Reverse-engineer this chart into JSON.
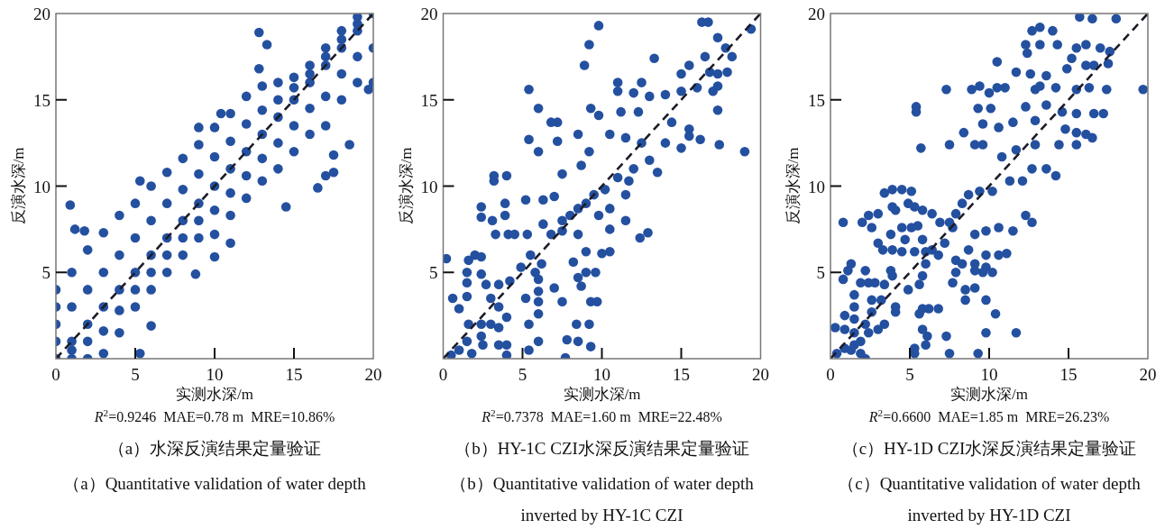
{
  "chart_data": [
    {
      "type": "scatter",
      "xlabel": "实测水深/m",
      "ylabel": "反演水深/m",
      "annotations": [
        "R$^{2}$=0.9246  MAE=0.78 m  MRE=10.86%",
        "（a）水深反演结果定量验证",
        "（a）Quantitative validation of water depth"
      ],
      "xlim": [
        0,
        20
      ],
      "ylim": [
        0,
        20
      ],
      "xticks": [
        0,
        5,
        10,
        15,
        20
      ],
      "yticks": [
        5,
        10,
        15,
        20
      ],
      "marker": "circle",
      "series": [
        {
          "color": "#2450a0",
          "x": [
            0,
            0,
            0,
            0,
            0,
            1,
            1,
            1,
            1,
            1,
            2,
            2,
            2,
            2,
            2,
            3,
            3,
            3,
            3,
            3,
            4,
            4,
            4,
            4,
            4,
            5,
            5,
            5,
            5,
            5,
            6,
            6,
            6,
            6,
            6,
            7,
            7,
            7,
            7,
            7,
            8,
            8,
            8,
            8,
            8,
            9,
            9,
            9,
            9,
            9,
            10,
            10,
            10,
            10,
            10,
            11,
            11,
            11,
            11,
            11,
            12,
            12,
            12,
            12,
            12,
            13,
            13,
            13,
            13,
            13,
            14,
            14,
            14,
            14,
            14,
            15,
            15,
            15,
            15,
            15,
            16,
            16,
            16,
            16,
            16,
            17,
            17,
            17,
            17,
            17,
            18,
            18,
            18,
            18,
            18,
            19,
            19,
            19,
            19,
            19,
            20,
            20,
            20,
            0.9,
            1.2,
            1.8,
            5.3,
            9,
            12.8,
            13.3,
            12.8,
            10.4,
            10,
            11,
            8.8,
            14.5,
            16.5,
            17,
            17.5,
            17.5,
            18.5,
            19.7,
            5.3,
            6
          ],
          "values": [
            0,
            1,
            2,
            3,
            4,
            0,
            0.5,
            1,
            3,
            5,
            0,
            1,
            2,
            4,
            6.3,
            0.3,
            1.6,
            3,
            5,
            7.3,
            1.5,
            2.8,
            4,
            6,
            8.3,
            3,
            4,
            5,
            7,
            9,
            4,
            5,
            6,
            8,
            10,
            5,
            6,
            7,
            9,
            10.8,
            6,
            7,
            8,
            9.8,
            11.6,
            7,
            8,
            9,
            10.7,
            12.4,
            7.2,
            8.6,
            10,
            11.7,
            13.4,
            8.3,
            9.6,
            11,
            12.6,
            14.2,
            9.3,
            10.6,
            12,
            13.6,
            15.2,
            10.3,
            11.6,
            13,
            14.4,
            15.8,
            11,
            12.5,
            14,
            15,
            16,
            12,
            13.5,
            15,
            15.7,
            16.3,
            13,
            14.5,
            16,
            16.5,
            17,
            13.5,
            15.2,
            17,
            17.5,
            18,
            15,
            16.5,
            18,
            18.5,
            19,
            16,
            17.5,
            19,
            19.4,
            19.8,
            16,
            18,
            20,
            8.9,
            7.5,
            7.4,
            10.3,
            13.4,
            18.9,
            18.2,
            16.8,
            14.2,
            5.9,
            6.7,
            4.9,
            8.8,
            9.9,
            10.6,
            10.8,
            11.8,
            12.4,
            15.6,
            0.3,
            1.9
          ]
        },
        {
          "type": "line",
          "color": "#1c1c28",
          "line_style": "dashed",
          "marker": "none",
          "x": [
            0,
            20
          ],
          "values": [
            0,
            20
          ]
        }
      ]
    },
    {
      "type": "scatter",
      "xlabel": "实测水深/m",
      "ylabel": "反演水深/m",
      "annotations": [
        "R$^{2}$=0.7378  MAE=1.60 m  MRE=22.48%",
        "（b）HY-1C CZI水深反演结果定量验证",
        "（b）Quantitative validation of water depth inverted by HY-1C CZI"
      ],
      "xlim": [
        0,
        20
      ],
      "ylim": [
        0,
        20
      ],
      "xticks": [
        0,
        5,
        10,
        15,
        20
      ],
      "yticks": [
        5,
        10,
        15,
        20
      ],
      "marker": "circle",
      "series": [
        {
          "color": "#2450a0",
          "x": [
            19.4,
            9.8,
            16.3,
            16.7,
            9.2,
            8.9,
            13.3,
            17.3,
            17.8,
            18.2,
            16.5,
            15.5,
            15,
            16.8,
            17.3,
            17.9,
            5.4,
            6,
            5.4,
            6,
            7.2,
            6.8,
            7.2,
            11,
            12.5,
            11,
            12,
            13,
            9.3,
            9.8,
            11.2,
            12.3,
            14,
            15,
            16,
            17,
            17.3,
            17.3,
            17.4,
            19,
            14.4,
            15.5,
            15.5,
            16.2,
            14,
            15,
            13,
            12,
            11,
            10.2,
            9.5,
            9,
            8.5,
            8,
            7.5,
            9.8,
            10.5,
            11.5,
            11.7,
            13.5,
            12.5,
            11.5,
            10.5,
            8.5,
            9.2,
            8.7,
            7.5,
            7,
            6.3,
            5.2,
            3.2,
            4,
            3.2,
            2.4,
            2.4,
            3.1,
            3.9,
            3.9,
            3.3,
            4.1,
            4.5,
            5.3,
            6.3,
            6.8,
            7.5,
            8.5,
            10.5,
            11.5,
            12.4,
            12.9,
            9,
            10,
            10.5,
            8.2,
            9,
            9.6,
            8.5,
            8.7,
            7.5,
            9.3,
            9.7,
            5.5,
            6.2,
            5.8,
            6,
            4.9,
            4.2,
            3.5,
            2.7,
            1.5,
            1.5,
            1.6,
            2,
            2.4,
            2.4,
            0.2,
            0.6,
            1,
            1.5,
            3,
            3.5,
            4,
            2.4,
            1.6,
            3,
            3.5,
            2.4,
            3.5,
            2.5,
            1.5,
            1,
            0.5,
            1.8,
            4,
            4,
            5.4,
            5.4,
            6,
            6,
            6,
            6,
            7,
            5.2,
            8.4,
            9.2,
            7.8,
            8.5,
            9.3,
            7.7
          ],
          "values": [
            19.1,
            19.3,
            19.5,
            19.5,
            18.2,
            17,
            17.4,
            18.6,
            18,
            17.5,
            17.5,
            17,
            16.5,
            16.6,
            16.5,
            16.6,
            15.6,
            14.5,
            12.7,
            12,
            13.7,
            13.7,
            12.6,
            16,
            16,
            15.5,
            15.4,
            15.2,
            14.5,
            14.1,
            14.3,
            14.3,
            15.3,
            15.5,
            15.7,
            15.5,
            15.8,
            14.4,
            12.4,
            12,
            13.7,
            13.3,
            12.9,
            12.7,
            12.5,
            12.2,
            11.5,
            11,
            10.5,
            9.8,
            9.5,
            9,
            8.7,
            8.3,
            8,
            8.3,
            8.7,
            9.5,
            10.3,
            10.8,
            12.5,
            12.8,
            13,
            13,
            12,
            11.2,
            10.7,
            9.4,
            9.2,
            9.2,
            10.6,
            10.6,
            10.3,
            8.8,
            8.2,
            8,
            9,
            8.3,
            7.2,
            7.2,
            7.2,
            7.2,
            7.8,
            7.2,
            7.4,
            7.2,
            7.5,
            8,
            7,
            7.3,
            6.2,
            6.1,
            6.2,
            5.6,
            5,
            5,
            4.7,
            4.2,
            3.3,
            3.3,
            3.3,
            6,
            5.5,
            5,
            4.6,
            5.3,
            4.5,
            4.3,
            4.3,
            4.4,
            5,
            5.7,
            6,
            5.9,
            4.9,
            5.8,
            3.5,
            2.9,
            3.6,
            3.5,
            3,
            2.4,
            2,
            2,
            2,
            1.8,
            1.3,
            0.8,
            0.8,
            1,
            0.5,
            0.2,
            0.3,
            0.2,
            0.8,
            0.5,
            2,
            2.6,
            1,
            3.9,
            3.3,
            4.1,
            3.5,
            2,
            2,
            1.1,
            1,
            0.7,
            0.05
          ]
        },
        {
          "type": "line",
          "color": "#1c1c28",
          "line_style": "dashed",
          "marker": "none",
          "x": [
            0,
            20
          ],
          "values": [
            0,
            20
          ]
        }
      ]
    },
    {
      "type": "scatter",
      "xlabel": "实测水深/m",
      "ylabel": "反演水深/m",
      "annotations": [
        "R$^{2}$=0.6600  MAE=1.85 m  MRE=26.23%",
        "（c）HY-1D CZI水深反演结果定量验证",
        "（c）Quantitative validation of water depth inverted by HY-1D CZI"
      ],
      "xlim": [
        0,
        20
      ],
      "ylim": [
        0,
        20
      ],
      "xticks": [
        0,
        5,
        10,
        15,
        20
      ],
      "yticks": [
        5,
        10,
        15,
        20
      ],
      "marker": "circle",
      "series": [
        {
          "color": "#2450a0",
          "x": [
            15.7,
            16.5,
            18,
            13.2,
            12.7,
            14,
            14.3,
            12.3,
            13.2,
            12.4,
            10.5,
            11.7,
            12.6,
            13.6,
            15.5,
            16.1,
            17,
            17.6,
            17.5,
            15.2,
            14.9,
            16.1,
            16.6,
            7.3,
            8.9,
            9.4,
            10,
            10.5,
            11,
            12.9,
            13.2,
            14.2,
            15.5,
            16.3,
            17.4,
            19.7,
            5.4,
            5.4,
            5.7,
            7.5,
            8.4,
            9.1,
            9.6,
            10.1,
            9.3,
            9.6,
            10.6,
            11.5,
            12.9,
            12.3,
            13.6,
            14.6,
            15.5,
            16.6,
            17.2,
            16.1,
            16.5,
            14.8,
            15.5,
            14.4,
            15.5,
            14.2,
            12.9,
            11.7,
            10.8,
            12.7,
            13.6,
            12.1,
            11.3,
            10.2,
            9.4,
            8.7,
            8.3,
            7.9,
            7.5,
            6.9,
            6.4,
            5.8,
            5.5,
            5.1,
            4.5,
            5.3,
            4.9,
            4.5,
            5.1,
            3.9,
            3.4,
            3.9,
            4.1,
            3,
            2.4,
            2,
            2.6,
            0.8,
            3.8,
            3,
            3.3,
            3.9,
            4.5,
            4.7,
            5.3,
            5.8,
            6.4,
            6.8,
            7.2,
            7.7,
            9.1,
            9.8,
            10.6,
            11.5,
            12.3,
            12.7,
            10.6,
            11.1,
            9.8,
            8.7,
            7.9,
            8.3,
            9.1,
            9.8,
            10.2,
            9.6,
            9.1,
            7.9,
            7.7,
            8.5,
            8.5,
            9.1,
            9.8,
            10.4,
            9.8,
            11.7,
            9.3,
            7.5,
            7.3,
            6.8,
            6.2,
            5.8,
            5.6,
            5.8,
            6.1,
            6,
            5.3,
            5.3,
            5.6,
            5.8,
            4.9,
            6,
            6,
            3.9,
            3.8,
            3.4,
            3.2,
            3.4,
            3,
            4.1,
            4.1,
            2.8,
            2.4,
            1.9,
            2.2,
            1.3,
            1.1,
            0.8,
            1.5,
            1.5,
            1.5,
            2.6,
            2.6,
            2.2,
            1.5,
            0.9,
            0.3,
            0.9,
            0.9,
            1.3,
            1.9,
            2.2,
            0.4,
            2.4,
            1.9,
            1.5
          ],
          "values": [
            19.8,
            19.7,
            19.7,
            19.2,
            19,
            19,
            18.2,
            18.2,
            18.2,
            17.7,
            17.2,
            16.6,
            16.5,
            16.4,
            18,
            18.2,
            18,
            17.8,
            17.1,
            17.4,
            16.8,
            17,
            17,
            15.6,
            15.6,
            15.8,
            15.4,
            15.7,
            15.7,
            15.6,
            15.8,
            15.7,
            15.6,
            15.7,
            15.6,
            15.6,
            14.6,
            14.3,
            12.2,
            12.4,
            13.1,
            12.4,
            12.4,
            14.5,
            14.5,
            13.6,
            13.4,
            13.7,
            13.8,
            14.6,
            14.7,
            14.3,
            14.2,
            14.2,
            14.2,
            13,
            12.8,
            13.3,
            13.1,
            12.4,
            12.4,
            10.6,
            12.4,
            12.1,
            11.7,
            11,
            11,
            10.3,
            10.3,
            9.7,
            9.7,
            9.5,
            9,
            8.4,
            7.9,
            7.9,
            8.4,
            8.6,
            7.7,
            7.6,
            7.6,
            8.8,
            9,
            9.8,
            9.7,
            9.8,
            9.6,
            8.8,
            8.6,
            8.4,
            8.3,
            7.9,
            7.6,
            7.9,
            7.2,
            6.7,
            6.3,
            6.3,
            6.2,
            6.9,
            6.2,
            6.9,
            6.3,
            6,
            6.7,
            7.6,
            7.2,
            7.4,
            7.6,
            7.4,
            8.3,
            7.9,
            6,
            6.1,
            6,
            6.3,
            5.7,
            5.5,
            5.5,
            5.3,
            5,
            5,
            5.1,
            5,
            4.4,
            4,
            3.4,
            4.1,
            3.4,
            2.6,
            1.5,
            1.5,
            0.3,
            0.3,
            1.3,
            2.9,
            2.9,
            2.9,
            2.6,
            1.7,
            1.3,
            0.8,
            0.6,
            0.3,
            4.3,
            4.8,
            4,
            5.5,
            6.2,
            4.8,
            5.1,
            4.3,
            3.4,
            2,
            1.7,
            3,
            2.7,
            4.4,
            4.4,
            4.4,
            5.1,
            5.5,
            5.1,
            4.6,
            3.7,
            3,
            2.3,
            3.4,
            2.7,
            2,
            1.5,
            1.7,
            1.8,
            2.5,
            0.6,
            0.5,
            0.3,
            0,
            0.3,
            1.5,
            1,
            0.8
          ]
        },
        {
          "type": "line",
          "color": "#1c1c28",
          "line_style": "dashed",
          "marker": "none",
          "x": [
            0,
            20
          ],
          "values": [
            0,
            20
          ]
        }
      ]
    }
  ]
}
